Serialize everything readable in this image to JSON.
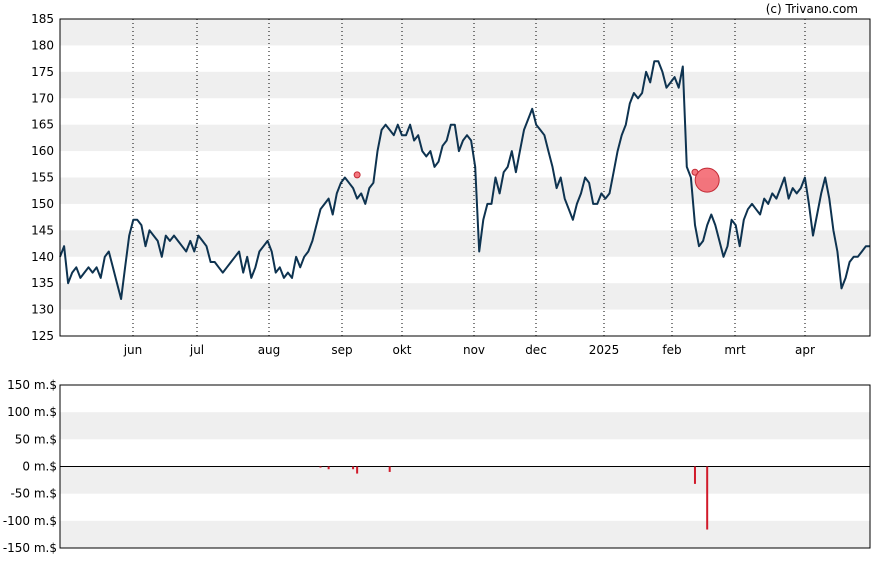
{
  "credit": "(c) Trivano.com",
  "colors": {
    "line": "#0e3350",
    "band": "#efefef",
    "marker": "#f2555f",
    "bar": "#d11a2a"
  },
  "chart_data": [
    {
      "type": "line",
      "title": "",
      "ylim": [
        125,
        185
      ],
      "y_ticks": [
        "185",
        "180",
        "175",
        "170",
        "165",
        "160",
        "155",
        "150",
        "145",
        "140",
        "135",
        "130",
        "125"
      ],
      "x_ticks": [
        "jun",
        "jul",
        "aug",
        "sep",
        "okt",
        "nov",
        "dec",
        "2025",
        "feb",
        "mrt",
        "apr"
      ],
      "grid": "alternating horizontal bands, dotted vertical lines at month ticks",
      "series": [
        {
          "values": [
            140,
            142,
            135,
            137,
            138,
            136,
            137,
            138,
            137,
            138,
            136,
            140,
            141,
            138,
            135,
            132,
            138,
            144,
            147,
            147,
            146,
            142,
            145,
            144,
            143,
            140,
            144,
            143,
            144,
            143,
            142,
            141,
            143,
            141,
            144,
            143,
            142,
            139,
            139,
            138,
            137,
            138,
            139,
            140,
            141,
            137,
            140,
            136,
            138,
            141,
            142,
            143,
            141,
            137,
            138,
            136,
            137,
            136,
            140,
            138,
            140,
            141,
            143,
            146,
            149,
            150,
            151,
            148,
            152,
            154,
            155,
            154,
            153,
            151,
            152,
            150,
            153,
            154,
            160,
            164,
            165,
            164,
            163,
            165,
            163,
            163,
            165,
            162,
            163,
            160,
            159,
            160,
            157,
            158,
            161,
            162,
            165,
            165,
            160,
            162,
            163,
            162,
            157,
            141,
            147,
            150,
            150,
            155,
            152,
            156,
            157,
            160,
            156,
            160,
            164,
            166,
            168,
            165,
            164,
            163,
            160,
            157,
            153,
            155,
            151,
            149,
            147,
            150,
            152,
            155,
            154,
            150,
            150,
            152,
            151,
            152,
            156,
            160,
            163,
            165,
            169,
            171,
            170,
            171,
            175,
            173,
            177,
            177,
            175,
            172,
            173,
            174,
            172,
            176,
            157,
            155,
            146,
            142,
            143,
            146,
            148,
            146,
            143,
            140,
            142,
            147,
            146,
            142,
            147,
            149,
            150,
            149,
            148,
            151,
            150,
            152,
            151,
            153,
            155,
            151,
            153,
            152,
            153,
            155,
            150,
            144,
            148,
            152,
            155,
            151,
            145,
            141,
            134,
            136,
            139,
            140,
            140,
            141,
            142,
            142
          ]
        }
      ],
      "markers": [
        {
          "index": 73,
          "value": 155.5,
          "size": "small"
        },
        {
          "index": 156,
          "value": 156,
          "size": "small"
        },
        {
          "index": 159,
          "value": 154.5,
          "size": "large"
        }
      ]
    },
    {
      "type": "bar",
      "title": "",
      "ylim": [
        -150,
        150
      ],
      "y_ticks": [
        "150 m.$",
        "100 m.$",
        "50 m.$",
        "0 m.$",
        "-50 m.$",
        "-100 m.$",
        "-150 m.$"
      ],
      "grid": "alternating horizontal bands",
      "bars": [
        {
          "index": 64,
          "value": -2
        },
        {
          "index": 66,
          "value": -5
        },
        {
          "index": 72,
          "value": -5
        },
        {
          "index": 73,
          "value": -13
        },
        {
          "index": 81,
          "value": -10
        },
        {
          "index": 156,
          "value": -32
        },
        {
          "index": 159,
          "value": -116
        }
      ]
    }
  ]
}
